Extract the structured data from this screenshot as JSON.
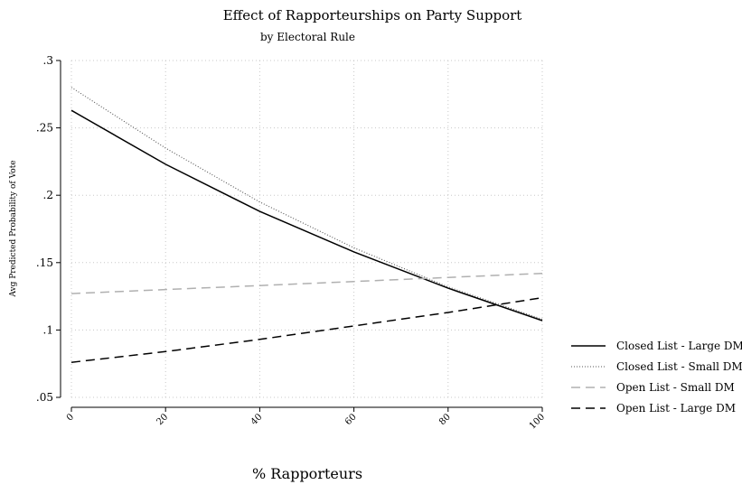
{
  "chart_data": {
    "type": "line",
    "title": "Effect of Rapporteurships on Party Support",
    "subtitle": "by Electoral Rule",
    "xlabel": "% Rapporteurs",
    "ylabel": "Avg Predicted Probability of Vote",
    "x": [
      0,
      20,
      40,
      60,
      80,
      100
    ],
    "xlim": [
      0,
      100
    ],
    "ylim": [
      0.05,
      0.3
    ],
    "xticks": [
      "0",
      "20",
      "40",
      "60",
      "80",
      "100"
    ],
    "yticks": [
      ".05",
      ".1",
      ".15",
      ".2",
      ".25",
      ".3"
    ],
    "ytick_values": [
      0.05,
      0.1,
      0.15,
      0.2,
      0.25,
      0.3
    ],
    "grid": true,
    "legend_position": "right",
    "series": [
      {
        "name": "Closed List - Large DM",
        "values": [
          0.263,
          0.223,
          0.188,
          0.158,
          0.131,
          0.107
        ],
        "color": "#000000",
        "style": "solid"
      },
      {
        "name": "Closed List - Small DM",
        "values": [
          0.28,
          0.235,
          0.195,
          0.161,
          0.132,
          0.108
        ],
        "color": "#555555",
        "style": "dotted"
      },
      {
        "name": "Open List - Small DM",
        "values": [
          0.127,
          0.13,
          0.133,
          0.136,
          0.139,
          0.142
        ],
        "color": "#b0b0b0",
        "style": "dashed"
      },
      {
        "name": "Open List - Large DM",
        "values": [
          0.076,
          0.084,
          0.093,
          0.103,
          0.113,
          0.124
        ],
        "color": "#000000",
        "style": "dashed"
      }
    ]
  }
}
